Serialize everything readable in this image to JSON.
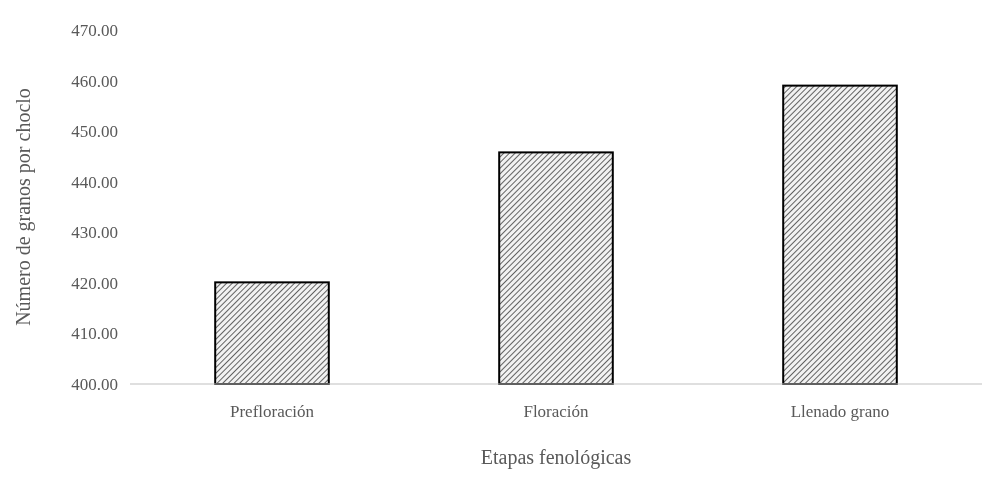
{
  "chart_data": {
    "type": "bar",
    "xlabel": "Etapas fenológicas",
    "ylabel": "Número de granos por choclo",
    "categories": [
      "Prefloración",
      "Floración",
      "Llenado grano"
    ],
    "values": [
      420.1,
      445.8,
      459.0
    ],
    "color": "#000000",
    "ylim": [
      400,
      470
    ],
    "yticks": [
      {
        "value": 400,
        "label": "400.00"
      },
      {
        "value": 410,
        "label": "410.00"
      },
      {
        "value": 420,
        "label": "420.00"
      },
      {
        "value": 430,
        "label": "430.00"
      },
      {
        "value": 440,
        "label": "440.00"
      },
      {
        "value": 450,
        "label": "450.00"
      },
      {
        "value": 460,
        "label": "460.00"
      },
      {
        "value": 470,
        "label": "470.00"
      }
    ],
    "grid": false
  }
}
